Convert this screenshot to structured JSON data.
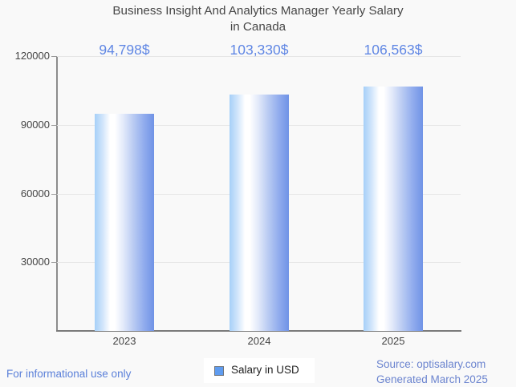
{
  "title": {
    "line1": "Business Insight And Analytics Manager Yearly Salary",
    "line2": "in Canada"
  },
  "chart_data": {
    "type": "bar",
    "title": "Business Insight And Analytics Manager Yearly Salary in Canada",
    "categories": [
      "2023",
      "2024",
      "2025"
    ],
    "series": [
      {
        "name": "Salary in USD",
        "values": [
          94798,
          103330,
          106563
        ]
      }
    ],
    "value_labels": [
      "94,798$",
      "103,330$",
      "106,563$"
    ],
    "xlabel": "",
    "ylabel": "",
    "ylim": [
      0,
      120000
    ],
    "y_ticks": [
      30000,
      60000,
      90000,
      120000
    ],
    "y_tick_labels": [
      "30000",
      "60000",
      "90000",
      "120000"
    ],
    "grid": true,
    "legend_position": "bottom",
    "bar_color_left": "#a6d0f8",
    "bar_color_right": "#7093e6",
    "value_label_color": "#6087e4"
  },
  "legend": {
    "label": "Salary in USD",
    "marker_color": "#5f9cf0"
  },
  "footer": {
    "left": "For informational use only",
    "source": "Source: optisalary.com",
    "generated": "Generated March 2025"
  }
}
